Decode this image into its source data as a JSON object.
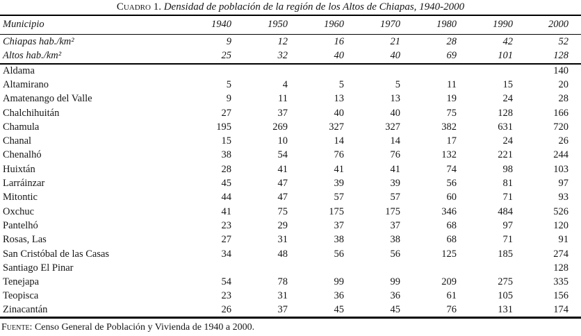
{
  "title": {
    "label": "Cuadro 1.",
    "caption": "Densidad de población de la región de los Altos de Chiapas, 1940-2000"
  },
  "table": {
    "header": {
      "municipio": "Municipio",
      "years": [
        "1940",
        "1950",
        "1960",
        "1970",
        "1980",
        "1990",
        "2000"
      ]
    },
    "summary_rows": [
      {
        "name": "Chiapas hab./km²",
        "values": [
          "9",
          "12",
          "16",
          "21",
          "28",
          "42",
          "52"
        ]
      },
      {
        "name": "Altos hab./km²",
        "values": [
          "25",
          "32",
          "40",
          "40",
          "69",
          "101",
          "128"
        ]
      }
    ],
    "rows": [
      {
        "name": "Aldama",
        "values": [
          "",
          "",
          "",
          "",
          "",
          "",
          "140"
        ]
      },
      {
        "name": "Altamirano",
        "values": [
          "5",
          "4",
          "5",
          "5",
          "11",
          "15",
          "20"
        ]
      },
      {
        "name": "Amatenango del Valle",
        "values": [
          "9",
          "11",
          "13",
          "13",
          "19",
          "24",
          "28"
        ]
      },
      {
        "name": "Chalchihuitán",
        "values": [
          "27",
          "37",
          "40",
          "40",
          "75",
          "128",
          "166"
        ]
      },
      {
        "name": "Chamula",
        "values": [
          "195",
          "269",
          "327",
          "327",
          "382",
          "631",
          "720"
        ]
      },
      {
        "name": "Chanal",
        "values": [
          "15",
          "10",
          "14",
          "14",
          "17",
          "24",
          "26"
        ]
      },
      {
        "name": "Chenalhó",
        "values": [
          "38",
          "54",
          "76",
          "76",
          "132",
          "221",
          "244"
        ]
      },
      {
        "name": "Huixtán",
        "values": [
          "28",
          "41",
          "41",
          "41",
          "74",
          "98",
          "103"
        ]
      },
      {
        "name": "Larráinzar",
        "values": [
          "45",
          "47",
          "39",
          "39",
          "56",
          "81",
          "97"
        ]
      },
      {
        "name": "Mitontic",
        "values": [
          "44",
          "47",
          "57",
          "57",
          "60",
          "71",
          "93"
        ]
      },
      {
        "name": "Oxchuc",
        "values": [
          "41",
          "75",
          "175",
          "175",
          "346",
          "484",
          "526"
        ]
      },
      {
        "name": "Pantelhó",
        "values": [
          "23",
          "29",
          "37",
          "37",
          "68",
          "97",
          "120"
        ]
      },
      {
        "name": "Rosas, Las",
        "values": [
          "27",
          "31",
          "38",
          "38",
          "68",
          "71",
          "91"
        ]
      },
      {
        "name": "San Cristóbal de las Casas",
        "values": [
          "34",
          "48",
          "56",
          "56",
          "125",
          "185",
          "274"
        ]
      },
      {
        "name": "Santiago El Pinar",
        "values": [
          "",
          "",
          "",
          "",
          "",
          "",
          "128"
        ]
      },
      {
        "name": "Tenejapa",
        "values": [
          "54",
          "78",
          "99",
          "99",
          "209",
          "275",
          "335"
        ]
      },
      {
        "name": "Teopisca",
        "values": [
          "23",
          "31",
          "36",
          "36",
          "61",
          "105",
          "156"
        ]
      },
      {
        "name": "Zinacantán",
        "values": [
          "26",
          "37",
          "45",
          "45",
          "76",
          "131",
          "174"
        ]
      }
    ]
  },
  "footer": {
    "label": "Fuente:",
    "text": "Censo General de Población y Vivienda de 1940 a 2000."
  }
}
